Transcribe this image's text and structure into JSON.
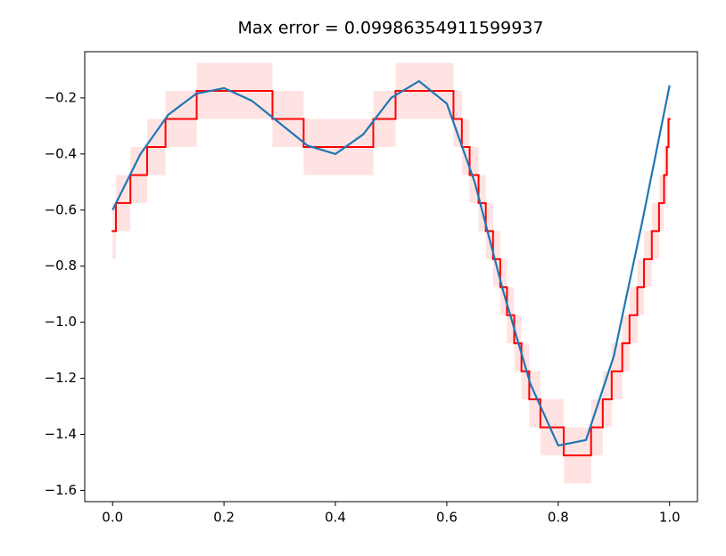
{
  "chart_data": {
    "type": "line",
    "title": "Max error = 0.09986354911599937",
    "xlim": [
      -0.05,
      1.05
    ],
    "ylim": [
      -1.64,
      -0.035
    ],
    "xticks": [
      {
        "value": 0,
        "label": "0.0"
      },
      {
        "value": 0.2,
        "label": "0.2"
      },
      {
        "value": 0.4,
        "label": "0.4"
      },
      {
        "value": 0.6,
        "label": "0.6"
      },
      {
        "value": 0.8,
        "label": "0.8"
      },
      {
        "value": 1,
        "label": "1.0"
      }
    ],
    "yticks": [
      {
        "value": -1.6,
        "label": "−1.6"
      },
      {
        "value": -1.4,
        "label": "−1.4"
      },
      {
        "value": -1.2,
        "label": "−1.2"
      },
      {
        "value": -1.0,
        "label": "−1.0"
      },
      {
        "value": -0.8,
        "label": "−0.8"
      },
      {
        "value": -0.6,
        "label": "−0.6"
      },
      {
        "value": -0.4,
        "label": "−0.4"
      },
      {
        "value": -0.2,
        "label": "−0.2"
      }
    ],
    "x": [
      0,
      0.05,
      0.1,
      0.15,
      0.2,
      0.25,
      0.3,
      0.35,
      0.4,
      0.45,
      0.5,
      0.55,
      0.6,
      0.65,
      0.7,
      0.75,
      0.8,
      0.85,
      0.9,
      0.95,
      1.0
    ],
    "series": [
      {
        "color": "#1f77b4",
        "values": [
          -0.6,
          -0.4,
          -0.26,
          -0.185,
          -0.165,
          -0.21,
          -0.29,
          -0.37,
          -0.4,
          -0.33,
          -0.2,
          -0.14,
          -0.22,
          -0.5,
          -0.88,
          -1.22,
          -1.44,
          -1.42,
          -1.12,
          -0.65,
          -0.155
        ]
      }
    ],
    "steps": {
      "color": "#ff0000",
      "band_color": "#ffdede",
      "band": 0.1,
      "edges": [
        0,
        0.006,
        0.032,
        0.062,
        0.095,
        0.151,
        0.287,
        0.343,
        0.468,
        0.508,
        0.612,
        0.627,
        0.641,
        0.657,
        0.67,
        0.683,
        0.696,
        0.708,
        0.721,
        0.734,
        0.748,
        0.768,
        0.81,
        0.859,
        0.88,
        0.896,
        0.915,
        0.928,
        0.942,
        0.954,
        0.968,
        0.981,
        0.99,
        0.995,
        0.998,
        1.0
      ],
      "values": [
        -0.675,
        -0.575,
        -0.475,
        -0.375,
        -0.275,
        -0.175,
        -0.275,
        -0.375,
        -0.275,
        -0.175,
        -0.275,
        -0.375,
        -0.475,
        -0.575,
        -0.675,
        -0.775,
        -0.875,
        -0.975,
        -1.075,
        -1.175,
        -1.275,
        -1.375,
        -1.475,
        -1.375,
        -1.275,
        -1.175,
        -1.075,
        -0.975,
        -0.875,
        -0.775,
        -0.675,
        -0.575,
        -0.475,
        -0.375,
        -0.275
      ]
    }
  }
}
